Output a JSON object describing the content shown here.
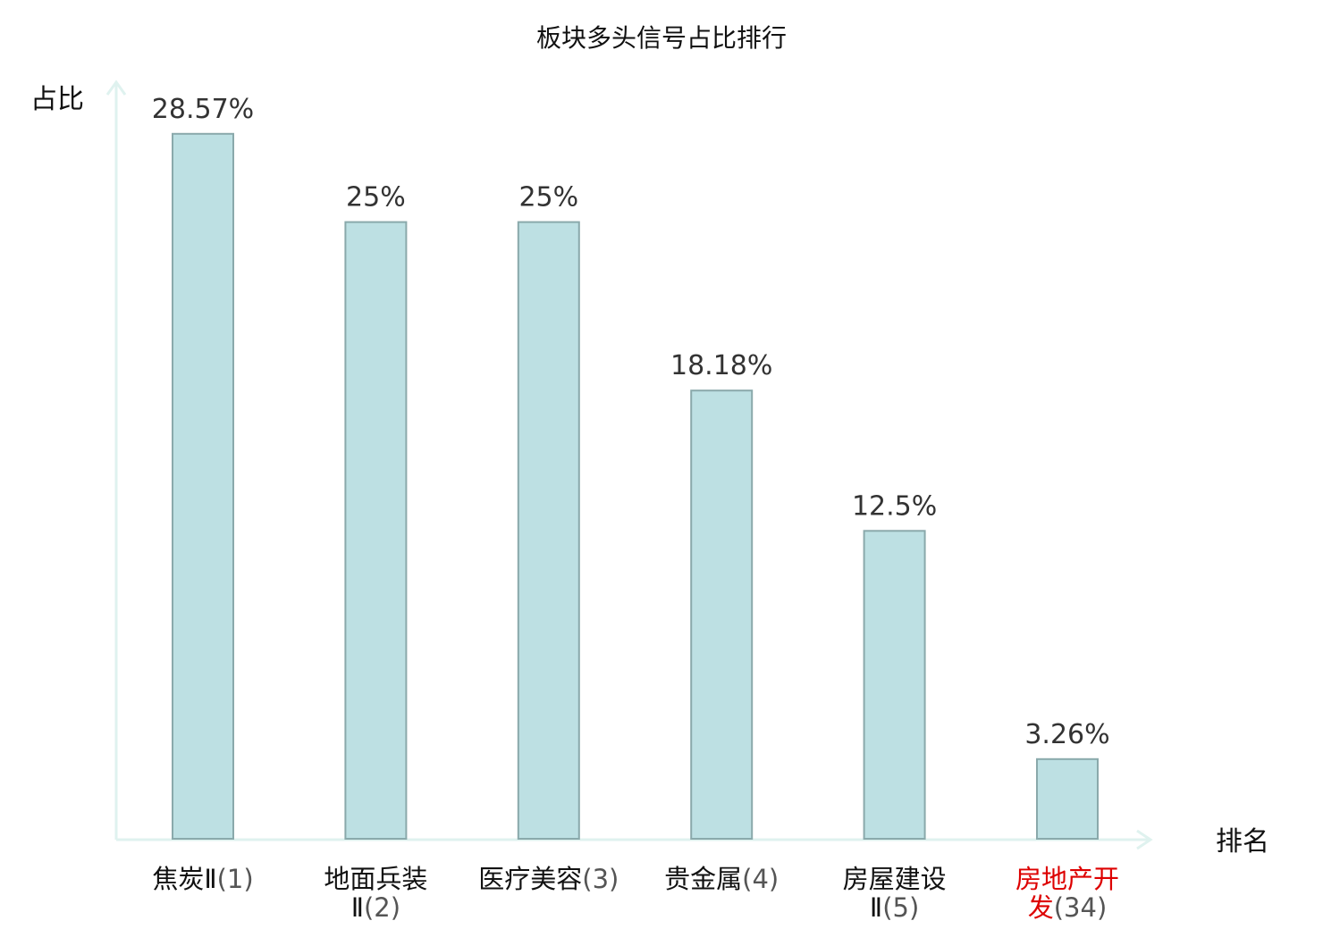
{
  "chart_data": {
    "type": "bar",
    "title": "板块多头信号占比排行",
    "xlabel": "排名",
    "ylabel": "占比",
    "ylim": [
      0,
      30.3
    ],
    "grid": false,
    "categories": [
      {
        "name": "焦炭Ⅱ",
        "rank": "(1)",
        "highlight": false
      },
      {
        "name": "地面兵装Ⅱ",
        "rank": "(2)",
        "highlight": false
      },
      {
        "name": "医疗美容",
        "rank": "(3)",
        "highlight": false
      },
      {
        "name": "贵金属",
        "rank": "(4)",
        "highlight": false
      },
      {
        "name": "房屋建设Ⅱ",
        "rank": "(5)",
        "highlight": false
      },
      {
        "name": "房地产开发",
        "rank": "(34)",
        "highlight": true
      }
    ],
    "values": [
      28.57,
      25,
      25,
      18.18,
      12.5,
      3.26
    ],
    "value_labels": [
      "28.57%",
      "25%",
      "25%",
      "18.18%",
      "12.5%",
      "3.26%"
    ],
    "colors": {
      "bar_fill": "#bde0e3",
      "bar_stroke": "#8aa9ab",
      "axis": "#dff2ef",
      "highlight_text": "#dd0000",
      "normal_text": "#111111"
    }
  }
}
